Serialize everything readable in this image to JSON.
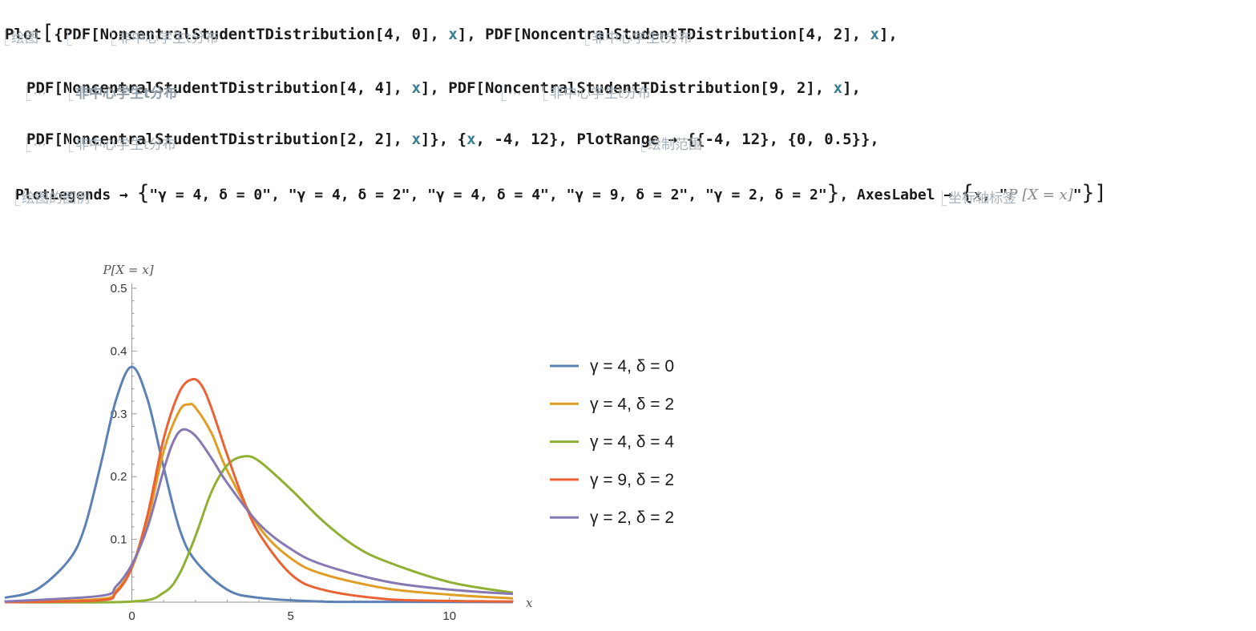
{
  "code": {
    "l1_plot": "Plot",
    "l1_a": "{PDF[NoncentralStudentTDistribution[4, 0], ",
    "l1_x": "x",
    "l1_b": "], PDF[NoncentralStudentTDistribution[4, 2], ",
    "l1_c": "],",
    "l2_a": "PDF[NoncentralStudentTDistribution[4, 4], ",
    "l2_b": "], PDF[NoncentralStudentTDistribution[9, 2], ",
    "l2_c": "],",
    "l3_a": "PDF[NoncentralStudentTDistribution[2, 2], ",
    "l3_b": "]}, {",
    "l3_c": ", -4, 12}, PlotRange → {{-4, 12}, {0, 0.5}},",
    "l4_a": "PlotLegends → ",
    "l4_b": "\"γ = 4, δ = 0\", \"γ = 4, δ = 2\", \"γ = 4, δ = 4\", \"γ = 9, δ = 2\", \"γ = 2, δ = 2\"",
    "l4_c": ", AxesLabel → ",
    "l4_x": "x",
    "l4_d": ", \"",
    "l4_p": "P [X = x]",
    "l4_e": "\""
  },
  "hints": {
    "plot": "绘图",
    "ellipsis": "⋯",
    "noncentral": "非中心学生t分布",
    "plot_range": "绘制范围",
    "plot_legends": "绘图的图例",
    "axes_label": "坐标轴标签"
  },
  "chart_data": {
    "type": "line",
    "xlabel": "x",
    "ylabel": "P[X = x]",
    "xlim": [
      -4,
      12
    ],
    "ylim": [
      0,
      0.5
    ],
    "xticks": [
      0,
      5,
      10
    ],
    "yticks": [
      0.1,
      0.2,
      0.3,
      0.4,
      0.5
    ],
    "legend_position": "right",
    "series": [
      {
        "name": "γ = 4, δ = 0",
        "color": "#5e81b5",
        "x": [
          -4,
          -3,
          -2,
          -1.5,
          -1,
          -0.5,
          0,
          0.5,
          1,
          1.5,
          2,
          3,
          4,
          6,
          8,
          12
        ],
        "y": [
          0.007,
          0.02,
          0.066,
          0.117,
          0.215,
          0.322,
          0.375,
          0.322,
          0.215,
          0.117,
          0.066,
          0.02,
          0.007,
          0.001,
          0.0005,
          0.0001
        ]
      },
      {
        "name": "γ = 4, δ = 2",
        "color": "#e19c24",
        "x": [
          -4,
          -1,
          -0.5,
          0,
          0.5,
          1,
          1.5,
          1.8,
          2,
          2.5,
          3,
          4,
          5,
          6,
          8,
          10,
          12
        ],
        "y": [
          0,
          0.005,
          0.018,
          0.055,
          0.13,
          0.24,
          0.305,
          0.315,
          0.31,
          0.27,
          0.21,
          0.12,
          0.07,
          0.045,
          0.022,
          0.012,
          0.006
        ]
      },
      {
        "name": "γ = 4, δ = 4",
        "color": "#8fb032",
        "x": [
          -4,
          0,
          1,
          1.5,
          2,
          2.5,
          3,
          3.5,
          4,
          5,
          6,
          7,
          8,
          10,
          12
        ],
        "y": [
          0,
          0.001,
          0.015,
          0.045,
          0.105,
          0.175,
          0.218,
          0.232,
          0.225,
          0.18,
          0.13,
          0.09,
          0.065,
          0.032,
          0.015
        ]
      },
      {
        "name": "γ = 9, δ = 2",
        "color": "#eb6235",
        "x": [
          -4,
          -1,
          -0.5,
          0,
          0.5,
          1,
          1.5,
          1.9,
          2.2,
          2.5,
          3,
          3.5,
          4,
          5,
          6,
          8,
          10,
          12
        ],
        "y": [
          0,
          0.003,
          0.015,
          0.055,
          0.14,
          0.26,
          0.335,
          0.355,
          0.345,
          0.31,
          0.235,
          0.165,
          0.11,
          0.045,
          0.02,
          0.005,
          0.002,
          0.001
        ]
      },
      {
        "name": "γ = 2, δ = 2",
        "color": "#8778b3",
        "x": [
          -4,
          -1,
          -0.5,
          0,
          0.5,
          1,
          1.3,
          1.6,
          2,
          2.5,
          3,
          4,
          5,
          6,
          8,
          10,
          12
        ],
        "y": [
          0.001,
          0.01,
          0.025,
          0.06,
          0.12,
          0.21,
          0.255,
          0.275,
          0.265,
          0.23,
          0.19,
          0.125,
          0.085,
          0.06,
          0.033,
          0.02,
          0.013
        ]
      }
    ]
  }
}
